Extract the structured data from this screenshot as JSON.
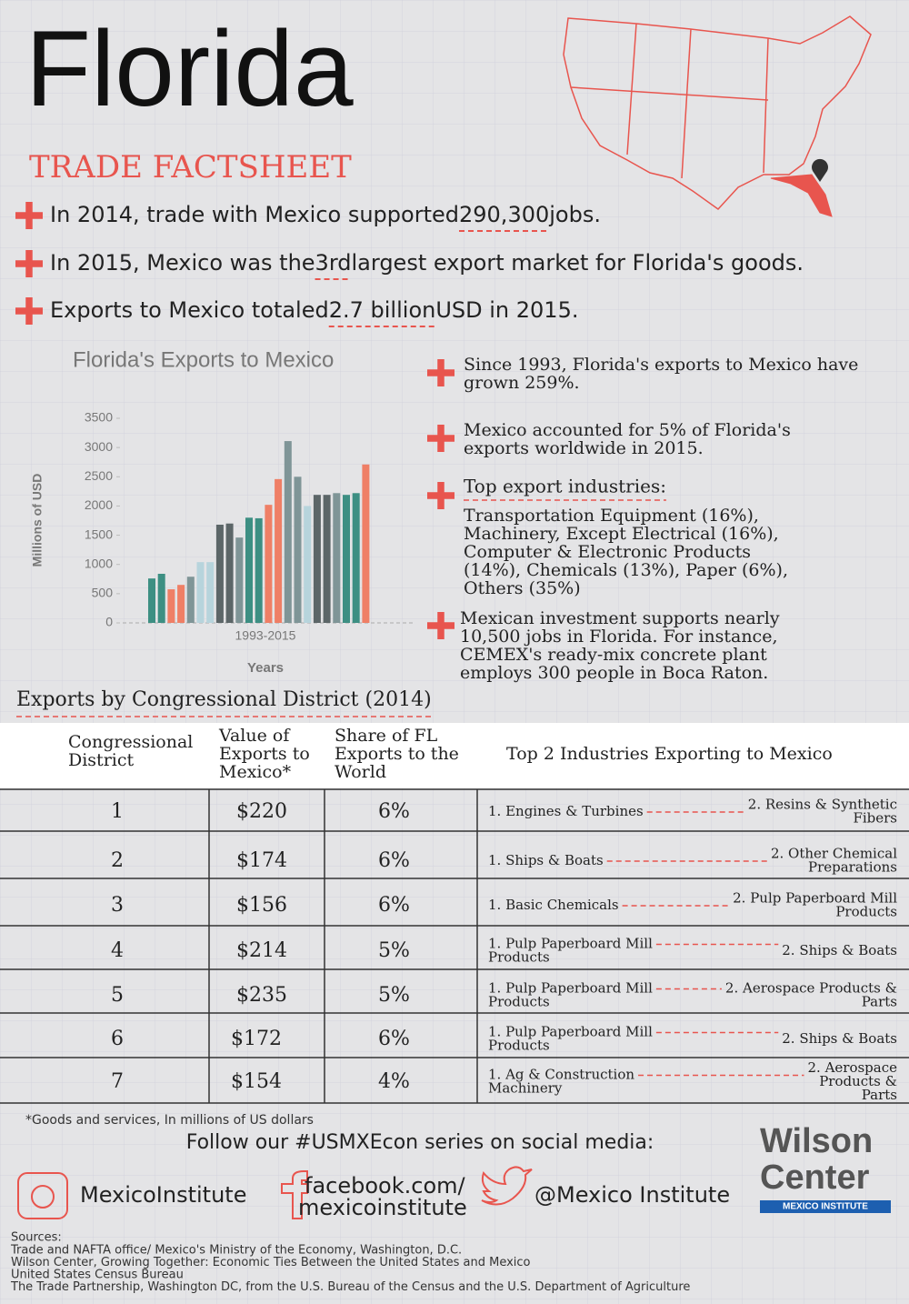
{
  "header": {
    "title": "Florida",
    "subtitle": "TRADE FACTSHEET"
  },
  "facts": [
    {
      "before": "In 2014, trade with Mexico supported ",
      "highlight": "290,300",
      "after": " jobs."
    },
    {
      "before": "In 2015, Mexico was the ",
      "highlight": "3rd",
      "after": " largest export market for Florida's goods."
    },
    {
      "before": "Exports to Mexico totaled ",
      "highlight": "2.7 billion",
      "after": " USD in 2015."
    }
  ],
  "chart_data": {
    "type": "bar",
    "title": "Florida's Exports to Mexico",
    "x_range_label": "1993-2015",
    "xlabel": "Years",
    "ylabel": "Millions of USD",
    "values": [
      760,
      840,
      575,
      650,
      790,
      1040,
      1040,
      1680,
      1700,
      1460,
      1800,
      1790,
      2020,
      2460,
      3110,
      2500,
      2000,
      2190,
      2190,
      2220,
      2190,
      2220,
      2710
    ],
    "colors": [
      "#3d8f83",
      "#3d8f83",
      "#ef7f66",
      "#ef7f66",
      "#7f9597",
      "#b7d4dc",
      "#b7d4dc",
      "#5c6668",
      "#5c6668",
      "#7f9597",
      "#3d8f83",
      "#3d8f83",
      "#ef7f66",
      "#ef7f66",
      "#7f9597",
      "#7f9597",
      "#b7d4dc",
      "#5c6668",
      "#5c6668",
      "#7f9597",
      "#3d8f83",
      "#3d8f83",
      "#ef7f66"
    ],
    "ylim": [
      0,
      3500
    ],
    "yticks": [
      0,
      500,
      1000,
      1500,
      2000,
      2500,
      3000,
      3500
    ],
    "grid": false
  },
  "notes": [
    {
      "lines": [
        "Since 1993, Florida's exports to Mexico have",
        "grown 259%."
      ]
    },
    {
      "lines": [
        "Mexico accounted for 5% of Florida's",
        "exports worldwide in 2015."
      ]
    },
    {
      "heading": "Top export industries:",
      "lines": [
        "Transportation Equipment (16%),",
        "Machinery, Except Electrical (16%),",
        " Computer & Electronic Products",
        "(14%), Chemicals (13%), Paper (6%),",
        "Others (35%)"
      ]
    },
    {
      "lines": [
        "Mexican investment supports nearly",
        "10,500 jobs in Florida. For instance,",
        "CEMEX's ready-mix concrete plant",
        "employs 300 people in Boca Raton."
      ]
    }
  ],
  "table": {
    "title": "Exports by Congressional District (2014)",
    "header": [
      [
        "Congressional",
        "District"
      ],
      [
        "Value of",
        "Exports to",
        "Mexico*"
      ],
      [
        "Share of FL",
        "Exports to the",
        "World"
      ],
      [
        "Top 2 Industries Exporting to Mexico"
      ]
    ],
    "rows": [
      [
        "1",
        "$220",
        "6%",
        [
          "1. Engines & Turbines"
        ],
        [
          "2. Resins & Synthetic",
          "Fibers"
        ]
      ],
      [
        "2",
        "$174",
        "6%",
        [
          "1. Ships & Boats"
        ],
        [
          "2. Other Chemical",
          "Preparations"
        ]
      ],
      [
        "3",
        "$156",
        "6%",
        [
          "1. Basic Chemicals"
        ],
        [
          "2. Pulp Paperboard Mill",
          "Products"
        ]
      ],
      [
        "4",
        "$214",
        "5%",
        [
          "1. Pulp Paperboard Mill",
          "Products"
        ],
        [
          "2. Ships & Boats"
        ]
      ],
      [
        "5",
        "$235",
        "5%",
        [
          "1. Pulp Paperboard Mill",
          "Products"
        ],
        [
          "2. Aerospace Products &",
          "Parts"
        ]
      ],
      [
        "6",
        "$172",
        "6%",
        [
          "1. Pulp Paperboard Mill",
          "Products"
        ],
        [
          "2. Ships & Boats"
        ]
      ],
      [
        "7",
        "$154",
        "4%",
        [
          "1. Ag & Construction",
          "Machinery"
        ],
        [
          "2. Aerospace",
          "Products &",
          "Parts"
        ]
      ]
    ],
    "footnote": "*Goods and services, In millions of US dollars"
  },
  "social": {
    "heading": "Follow our #USMXEcon series on social media:",
    "instagram": "MexicoInstitute",
    "facebook": [
      "facebook.com/",
      "mexicoinstitute"
    ],
    "twitter": "@Mexico Institute"
  },
  "logo": {
    "line1": "Wilson",
    "line2": "Center",
    "tag": "MEXICO INSTITUTE"
  },
  "sources": {
    "heading": "Sources:",
    "lines": [
      "Trade and NAFTA office/ Mexico's Ministry of the Economy, Washington, D.C.",
      "Wilson Center, Growing Together: Economic Ties Between the United States and Mexico",
      "United States Census Bureau",
      "The Trade Partnership, Washington DC, from the U.S. Bureau of the Census and the U.S. Department of Agriculture"
    ]
  }
}
